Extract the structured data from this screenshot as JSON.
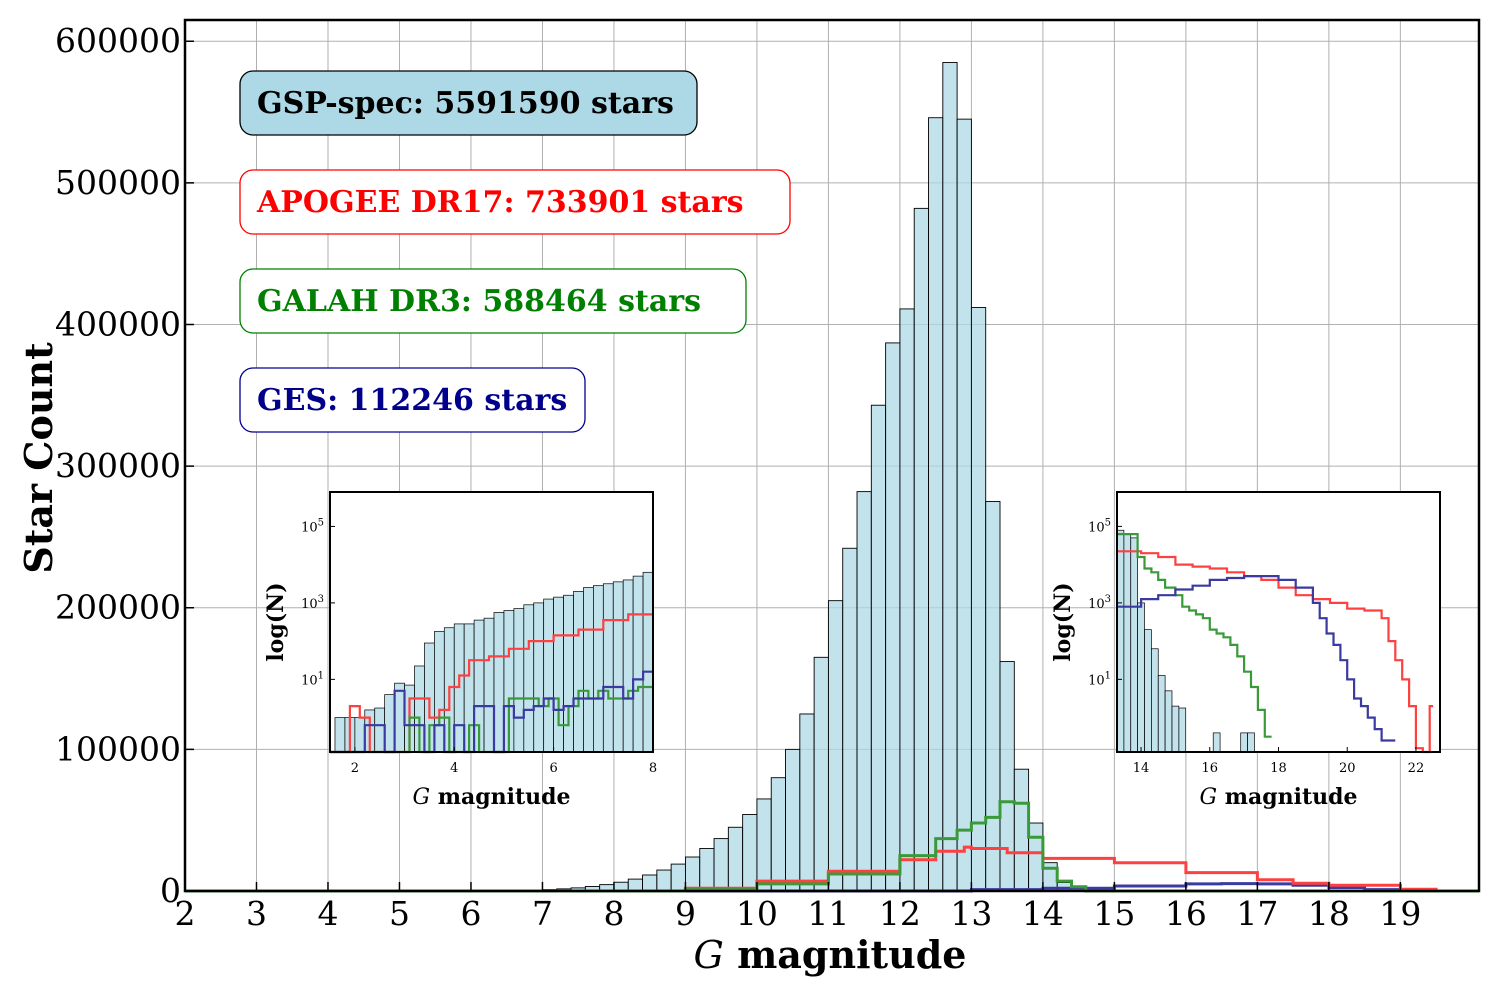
{
  "chart_data": {
    "type": "bar",
    "xlabel_italic": "G",
    "xlabel_rest": " magnitude",
    "ylabel": "Star Count",
    "xlim": [
      2,
      20.1
    ],
    "ylim": [
      0,
      615000
    ],
    "xticks": [
      "2",
      "3",
      "4",
      "5",
      "6",
      "7",
      "8",
      "9",
      "10",
      "11",
      "12",
      "13",
      "14",
      "15",
      "16",
      "17",
      "18",
      "19"
    ],
    "yticks": [
      "0",
      "100000",
      "200000",
      "300000",
      "400000",
      "500000",
      "600000"
    ],
    "grid": true,
    "gsp_bins": {
      "start": 6.4,
      "width": 0.2
    },
    "gsp_counts": [
      200,
      400,
      700,
      1000,
      1500,
      2200,
      3200,
      4500,
      6200,
      8400,
      11300,
      14800,
      19000,
      24000,
      30000,
      37000,
      45000,
      54000,
      65000,
      80000,
      100000,
      125000,
      165000,
      205000,
      242000,
      282000,
      343000,
      387000,
      411000,
      482000,
      546000,
      585000,
      545000,
      412000,
      275000,
      162000,
      86000,
      48000,
      20000,
      6000,
      1500
    ],
    "apogee_step": {
      "x": [
        2,
        8.6,
        9,
        10,
        11,
        12,
        12.5,
        12.9,
        13,
        13.5,
        14,
        15,
        16,
        17,
        17.5,
        18,
        19,
        19.5,
        20,
        20.1
      ],
      "y": [
        0,
        0,
        2000,
        7000,
        14000,
        22000,
        28000,
        31000,
        30000,
        27000,
        23000,
        20000,
        13000,
        8000,
        5500,
        4000,
        1200,
        0,
        0,
        0
      ]
    },
    "galah_step": {
      "x": [
        2,
        8.6,
        9,
        10,
        11,
        12,
        12.5,
        12.8,
        13,
        13.2,
        13.4,
        13.6,
        13.8,
        14,
        14.2,
        14.4,
        14.6,
        15,
        20.1
      ],
      "y": [
        0,
        0,
        1000,
        5000,
        12000,
        25000,
        37000,
        43000,
        48000,
        52000,
        63000,
        62000,
        38000,
        16000,
        7000,
        3000,
        0,
        0,
        0
      ]
    },
    "ges_step": {
      "x": [
        2,
        12,
        13,
        14,
        15,
        16,
        16.5,
        17,
        17.5,
        18,
        18.5,
        19,
        20.1
      ],
      "y": [
        0,
        0,
        1000,
        2000,
        3500,
        5000,
        5200,
        5000,
        4000,
        2500,
        1000,
        0,
        0
      ]
    },
    "insets": [
      {
        "xlabel_italic": "G",
        "xlabel_rest": " magnitude",
        "ylabel": "log(N)",
        "xticks": [
          "2",
          "4",
          "6",
          "8"
        ],
        "yticks_base": "10",
        "yticks_exp": [
          "1",
          "3",
          "5"
        ],
        "xlim": [
          1.5,
          8
        ],
        "ylim_log": [
          -0.9,
          5.9
        ],
        "gsp_log": [
          0,
          0,
          0,
          0.2,
          0.25,
          0.6,
          0.9,
          0.85,
          1.35,
          1.95,
          2.25,
          2.35,
          2.45,
          2.45,
          2.55,
          2.6,
          2.75,
          2.8,
          2.85,
          2.95,
          3.0,
          3.1,
          3.15,
          3.2,
          3.3,
          3.4,
          3.45,
          3.5,
          3.55,
          3.6,
          3.7,
          3.8
        ],
        "apogee": {
          "x": [
            1.5,
            1.9,
            2.1,
            2.3,
            2.5,
            2.7,
            2.9,
            3.1,
            3.3,
            3.5,
            3.7,
            3.9,
            4.1,
            4.3,
            4.5,
            4.7,
            4.9,
            5.1,
            5.5,
            6,
            6.5,
            7,
            7.5,
            8
          ],
          "y": [
            -1,
            0.3,
            0,
            -1,
            -1,
            -1,
            -1,
            0.5,
            0.5,
            0,
            0.2,
            0.8,
            1.1,
            1.5,
            1.5,
            1.6,
            1.6,
            1.8,
            2.0,
            2.15,
            2.3,
            2.55,
            2.7,
            2.8
          ]
        },
        "galah": {
          "x": [
            1.5,
            2.9,
            3.1,
            3.3,
            3.5,
            3.7,
            3.9,
            4.1,
            4.3,
            4.5,
            4.7,
            4.9,
            5.1,
            5.3,
            5.5,
            5.7,
            5.9,
            6.1,
            6.3,
            6.5,
            6.7,
            6.9,
            7.1,
            7.3,
            7.5,
            7.7,
            7.9,
            8
          ],
          "y": [
            -1,
            -1,
            0,
            -1,
            -0.2,
            0,
            -1,
            -1,
            -0.2,
            -1,
            -1,
            -1,
            0.5,
            0.5,
            0.5,
            0.3,
            0.5,
            -0.2,
            0.3,
            0.7,
            0.5,
            0.7,
            0.5,
            0.5,
            0.7,
            0.8,
            0.8,
            1.8
          ]
        },
        "ges": {
          "x": [
            1.5,
            2.2,
            2.4,
            2.6,
            2.8,
            3.0,
            3.2,
            3.4,
            3.6,
            3.8,
            4.0,
            4.2,
            4.4,
            4.6,
            4.8,
            5.0,
            5.2,
            5.4,
            5.6,
            5.8,
            6.0,
            6.2,
            6.4,
            6.6,
            6.8,
            7.0,
            7.2,
            7.4,
            7.6,
            7.8,
            8
          ],
          "y": [
            -1,
            -0.2,
            -0.2,
            -1,
            0.7,
            -0.2,
            -0.2,
            -1,
            -0.2,
            -1,
            -0.2,
            -1,
            0.3,
            0.3,
            -1,
            0.3,
            0,
            0.2,
            0.3,
            0.5,
            0.2,
            0.3,
            0.5,
            0.5,
            0.5,
            0.8,
            0.8,
            0.5,
            1.0,
            1.2,
            1.2
          ]
        }
      },
      {
        "xlabel_italic": "G",
        "xlabel_rest": " magnitude",
        "ylabel": "log(N)",
        "xticks": [
          "14",
          "16",
          "18",
          "20",
          "22"
        ],
        "yticks_base": "10",
        "yticks_exp": [
          "1",
          "3",
          "5"
        ],
        "xlim": [
          13.3,
          22.7
        ],
        "ylim_log": [
          -0.9,
          5.9
        ],
        "gsp_bins": {
          "start": 13.3,
          "width": 0.2
        },
        "gsp_log": [
          4.9,
          4.8,
          4.7,
          3.0,
          2.3,
          1.8,
          1.1,
          0.7,
          0.3,
          0.25,
          -1,
          -1,
          -1,
          -1,
          -0.4,
          -1,
          -1,
          -1,
          -0.4,
          -0.4,
          -1,
          -1
        ],
        "apogee": {
          "x": [
            13.3,
            14,
            14.5,
            15,
            15.5,
            16,
            16.5,
            17,
            17.5,
            18,
            18.5,
            19,
            19.5,
            20,
            20.5,
            21,
            21.2,
            21.4,
            21.6,
            21.8,
            22,
            22.2,
            22.4,
            22.5
          ],
          "y": [
            4.35,
            4.3,
            4.2,
            4.0,
            3.95,
            3.9,
            3.8,
            3.7,
            3.6,
            3.4,
            3.2,
            3.1,
            3.0,
            2.85,
            2.8,
            2.6,
            2.0,
            1.5,
            1.0,
            0.3,
            -0.8,
            -1,
            0.3,
            -1
          ]
        },
        "galah": {
          "x": [
            13.3,
            13.9,
            14.1,
            14.3,
            14.5,
            14.7,
            15,
            15.2,
            15.4,
            15.6,
            15.8,
            16,
            16.2,
            16.4,
            16.6,
            16.8,
            17,
            17.2,
            17.4,
            17.6,
            17.8
          ],
          "y": [
            4.8,
            4.2,
            3.9,
            3.8,
            3.6,
            3.4,
            3.2,
            2.9,
            2.8,
            2.7,
            2.6,
            2.3,
            2.2,
            2.1,
            1.9,
            1.6,
            1.2,
            0.8,
            0.2,
            -0.5,
            -1
          ]
        },
        "ges": {
          "x": [
            13.3,
            14,
            14.5,
            15,
            15.5,
            16,
            16.5,
            17,
            17.5,
            18,
            18.5,
            19,
            19.2,
            19.4,
            19.6,
            19.8,
            20,
            20.2,
            20.4,
            20.6,
            20.8,
            21,
            21.2,
            21.4
          ],
          "y": [
            2.9,
            3.1,
            3.2,
            3.35,
            3.45,
            3.6,
            3.65,
            3.7,
            3.7,
            3.6,
            3.4,
            3.0,
            2.6,
            2.2,
            1.9,
            1.5,
            1.0,
            0.5,
            0.3,
            0,
            -0.3,
            -0.6,
            -0.6,
            -1
          ]
        }
      }
    ]
  },
  "labels": [
    {
      "text": "GSP-spec: 5591590 stars",
      "color": "#000000",
      "fill": "#add8e6",
      "stroke": "#000000"
    },
    {
      "text": "APOGEE DR17: 733901 stars",
      "color": "#ff0000",
      "fill": "#ffffff",
      "stroke": "#ff0000"
    },
    {
      "text": "GALAH DR3: 588464 stars",
      "color": "#008000",
      "fill": "#ffffff",
      "stroke": "#008000"
    },
    {
      "text": "GES: 112246 stars",
      "color": "#00008b",
      "fill": "#ffffff",
      "stroke": "#00008b"
    }
  ],
  "colors": {
    "gsp_fill": "#add8e6",
    "gsp_edge": "#000000",
    "apogee": "#ff4040",
    "galah": "#3a9a3a",
    "ges": "#3a3aa0",
    "grid": "#b0b0b0"
  }
}
